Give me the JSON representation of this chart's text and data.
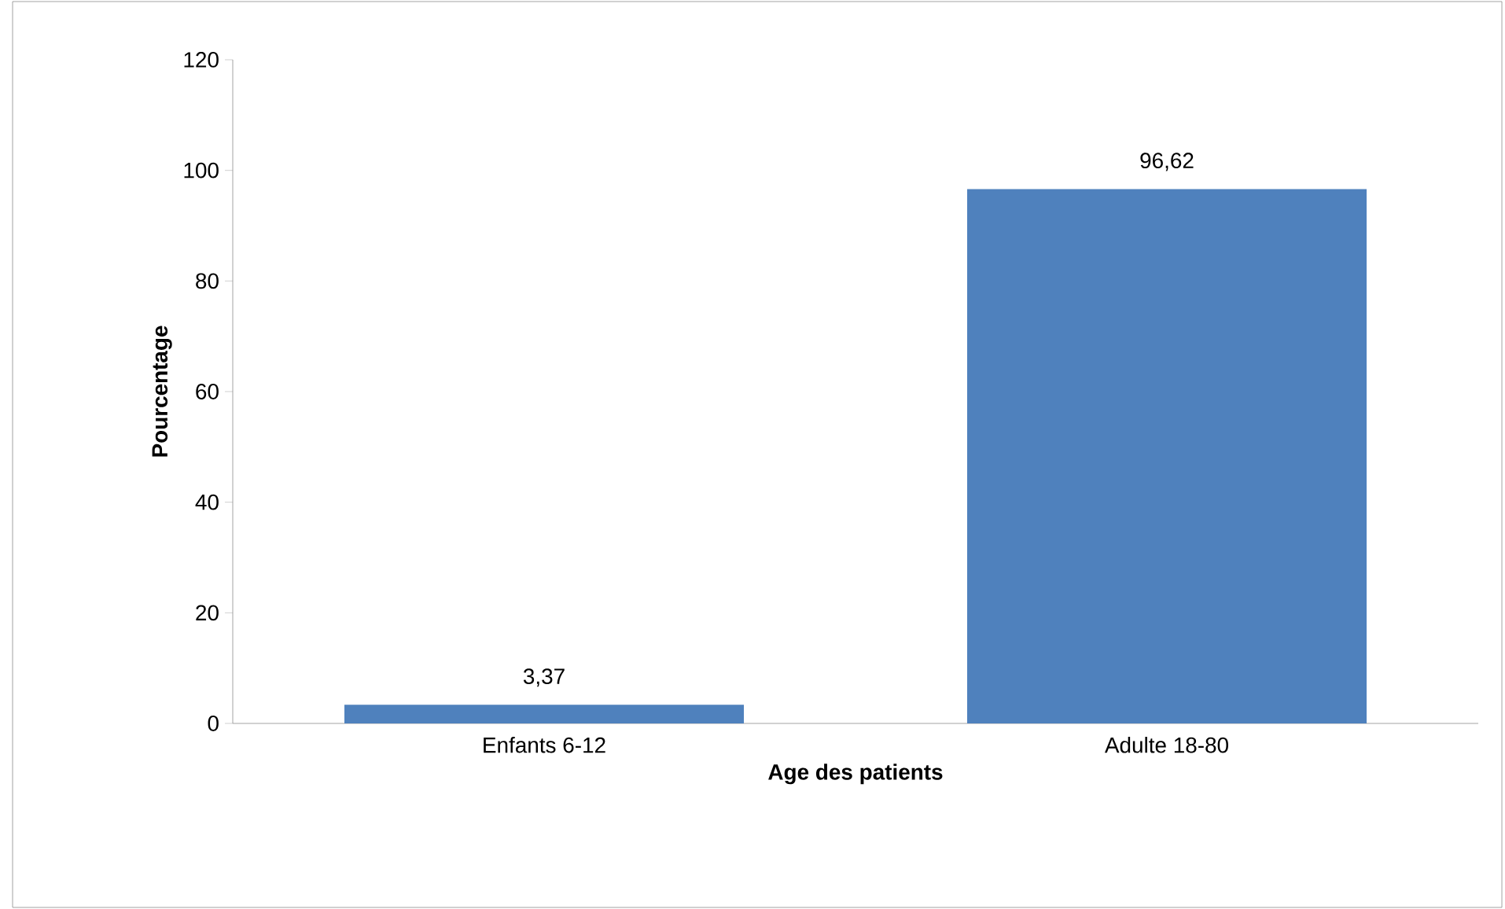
{
  "chart_data": {
    "type": "bar",
    "categories": [
      "Enfants 6-12",
      "Adulte 18-80"
    ],
    "values": [
      3.37,
      96.62
    ],
    "value_labels": [
      "3,37",
      "96,62"
    ],
    "color": "#4f81bd",
    "xlabel": "Age des patients",
    "ylabel": "Pourcentage",
    "ylim": [
      0,
      120
    ],
    "yticks": [
      0,
      20,
      40,
      60,
      80,
      100,
      120
    ]
  }
}
